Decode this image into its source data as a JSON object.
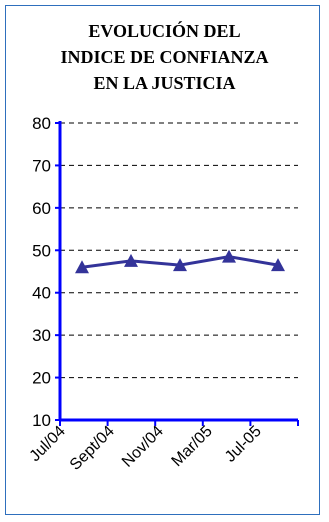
{
  "chart_data": {
    "type": "line",
    "title_lines": [
      "EVOLUCIÓN DEL",
      "INDICE DE CONFIANZA",
      "EN LA JUSTICIA"
    ],
    "x_tick_labels": [
      "Jul/04",
      "Sept/04",
      "Nov/04",
      "Mar/05",
      "Jul-05"
    ],
    "categories": [
      "",
      "",
      "",
      "",
      ""
    ],
    "values": [
      46,
      47.5,
      46.5,
      48.5,
      46.5
    ],
    "y_ticks": [
      10,
      20,
      30,
      40,
      50,
      60,
      70,
      80
    ],
    "ylim": [
      10,
      80
    ],
    "grid": "dashed horizontal",
    "legend": "none",
    "marker": "triangle",
    "colors": {
      "series": "#333399",
      "axis": "#0000ff",
      "grid": "#000000",
      "frame": "#2e6fbd"
    }
  }
}
